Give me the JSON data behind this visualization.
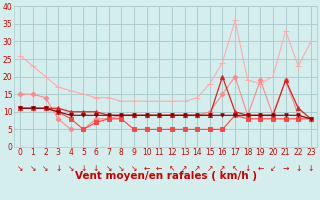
{
  "title": "",
  "xlabel": "Vent moyen/en rafales ( km/h )",
  "x": [
    0,
    1,
    2,
    3,
    4,
    5,
    6,
    7,
    8,
    9,
    10,
    11,
    12,
    13,
    14,
    15,
    16,
    17,
    18,
    19,
    20,
    21,
    22,
    23
  ],
  "series": [
    {
      "color": "#ffaaaa",
      "marker": "+",
      "markersize": 4,
      "linewidth": 0.8,
      "data": [
        26,
        23,
        20,
        17,
        16,
        15,
        14,
        14,
        13,
        13,
        13,
        13,
        13,
        13,
        14,
        18,
        24,
        36,
        19,
        18,
        20,
        33,
        23,
        30
      ]
    },
    {
      "color": "#ff8888",
      "marker": "D",
      "markersize": 2.5,
      "linewidth": 0.8,
      "data": [
        15,
        15,
        14,
        8,
        5,
        5,
        8,
        8,
        9,
        9,
        9,
        9,
        9,
        9,
        9,
        10,
        15,
        20,
        9,
        19,
        9,
        19,
        9,
        8
      ]
    },
    {
      "color": "#dd2222",
      "marker": "^",
      "markersize": 3,
      "linewidth": 0.9,
      "data": [
        11,
        11,
        11,
        11,
        10,
        10,
        10,
        9,
        9,
        9,
        9,
        9,
        9,
        9,
        9,
        9,
        20,
        10,
        9,
        9,
        9,
        19,
        11,
        8
      ]
    },
    {
      "color": "#ff4444",
      "marker": "s",
      "markersize": 2.5,
      "linewidth": 0.8,
      "data": [
        11,
        11,
        11,
        10,
        8,
        5,
        7,
        8,
        8,
        5,
        5,
        5,
        5,
        5,
        5,
        5,
        5,
        9,
        8,
        8,
        8,
        8,
        8,
        8
      ]
    },
    {
      "color": "#880000",
      "marker": "v",
      "markersize": 2.5,
      "linewidth": 0.8,
      "data": [
        11,
        11,
        11,
        10,
        9,
        9,
        9,
        9,
        9,
        9,
        9,
        9,
        9,
        9,
        9,
        9,
        9,
        9,
        9,
        9,
        9,
        9,
        9,
        8
      ]
    }
  ],
  "ylim": [
    0,
    40
  ],
  "yticks": [
    0,
    5,
    10,
    15,
    20,
    25,
    30,
    35,
    40
  ],
  "xlim": [
    -0.5,
    23.5
  ],
  "bg_color": "#d4eeee",
  "grid_color": "#aacccc",
  "label_color": "#cc0000",
  "arrows": [
    "↘",
    "↘",
    "↘",
    "↓",
    "↘",
    "↓",
    "↓",
    "↘",
    "↘",
    "↘",
    "←",
    "←",
    "↖",
    "↗",
    "↗",
    "↗",
    "↗",
    "↖",
    "↓",
    "←",
    "↙",
    "→",
    "↓",
    "↓"
  ],
  "tick_fontsize": 5.5,
  "label_fontsize": 7.5
}
